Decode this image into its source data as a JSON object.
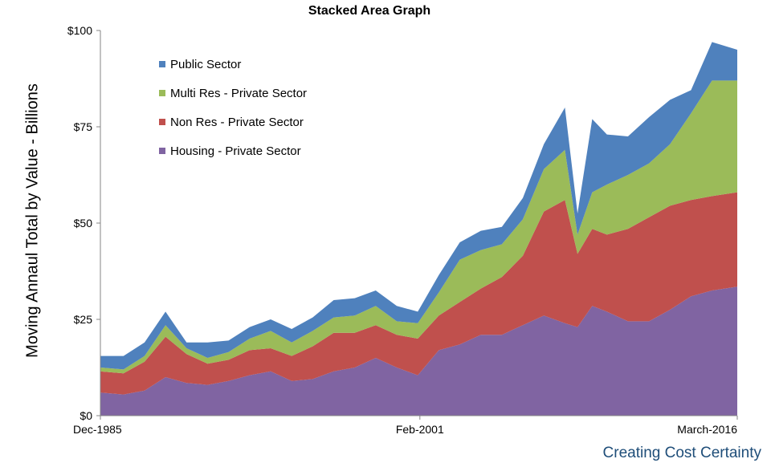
{
  "chart_data": {
    "type": "area",
    "stacked": true,
    "title": "Stacked Area Graph",
    "ylabel": "Moving Annaul Total by Value - Billions",
    "xlabel": "",
    "ylim": [
      0,
      100
    ],
    "y_ticks": [
      "$0",
      "$25",
      "$50",
      "$75",
      "$100"
    ],
    "y_tick_values": [
      0,
      25,
      50,
      75,
      100
    ],
    "x_tick_labels": [
      "Dec-1985",
      "Feb-2001",
      "March-2016"
    ],
    "x_tick_years": [
      1985.9,
      2001.1,
      2016.2
    ],
    "x": [
      1985.9,
      1987.0,
      1988.0,
      1989.0,
      1990.0,
      1991.0,
      1992.0,
      1993.0,
      1994.0,
      1995.0,
      1996.0,
      1997.0,
      1998.0,
      1999.0,
      2000.0,
      2001.0,
      2002.0,
      2003.0,
      2004.0,
      2005.0,
      2006.0,
      2007.0,
      2008.0,
      2008.6,
      2009.3,
      2010.0,
      2011.0,
      2012.0,
      2013.0,
      2014.0,
      2015.0,
      2016.2
    ],
    "series": [
      {
        "name": "Housing - Private Sector",
        "values": [
          6,
          5.5,
          6.5,
          10,
          8.5,
          8,
          9,
          10.5,
          11.5,
          9,
          9.5,
          11.5,
          12.5,
          15,
          12.5,
          10.5,
          17,
          18.5,
          21,
          21,
          23.5,
          26,
          24,
          23,
          28.5,
          27,
          24.5,
          24.5,
          27.5,
          31,
          32.5,
          33.5
        ]
      },
      {
        "name": "Non Res - Private Sector",
        "values": [
          5.5,
          5.5,
          7.5,
          10.5,
          7.5,
          5.5,
          5.5,
          6.5,
          6,
          6.5,
          8.5,
          10,
          9,
          8.5,
          8.5,
          9.5,
          9,
          11,
          12,
          15,
          18,
          27,
          32,
          19,
          20,
          20,
          24,
          27,
          27,
          25,
          24.5,
          24.5
        ]
      },
      {
        "name": "Multi Res - Private Sector",
        "values": [
          1,
          1,
          1.5,
          3,
          1.5,
          1.5,
          2,
          3,
          4.5,
          3.5,
          4,
          4,
          4.5,
          5,
          3.5,
          4,
          6,
          11,
          10,
          8.5,
          9.5,
          11,
          13,
          5,
          9.5,
          13,
          14,
          14,
          16,
          22.5,
          30,
          29
        ]
      },
      {
        "name": "Public Sector",
        "values": [
          3,
          3.5,
          3.5,
          3.5,
          1.5,
          4,
          3,
          3,
          3,
          3.5,
          3.5,
          4.5,
          4.5,
          4,
          4,
          3,
          4.5,
          4.5,
          5,
          4.5,
          5.5,
          6.5,
          11,
          5.5,
          19,
          13,
          10,
          12,
          11.5,
          6,
          10,
          8
        ]
      }
    ],
    "colors": [
      "#8064a2",
      "#c0504d",
      "#9bbb59",
      "#4f81bd"
    ],
    "legend": [
      {
        "label": "Public Sector",
        "color": "#4f81bd"
      },
      {
        "label": "Multi Res - Private Sector",
        "color": "#9bbb59"
      },
      {
        "label": "Non Res - Private Sector",
        "color": "#c0504d"
      },
      {
        "label": "Housing - Private Sector",
        "color": "#8064a2"
      }
    ],
    "legend_position": "top-left",
    "grid": false
  },
  "footer": "Creating Cost Certainty"
}
